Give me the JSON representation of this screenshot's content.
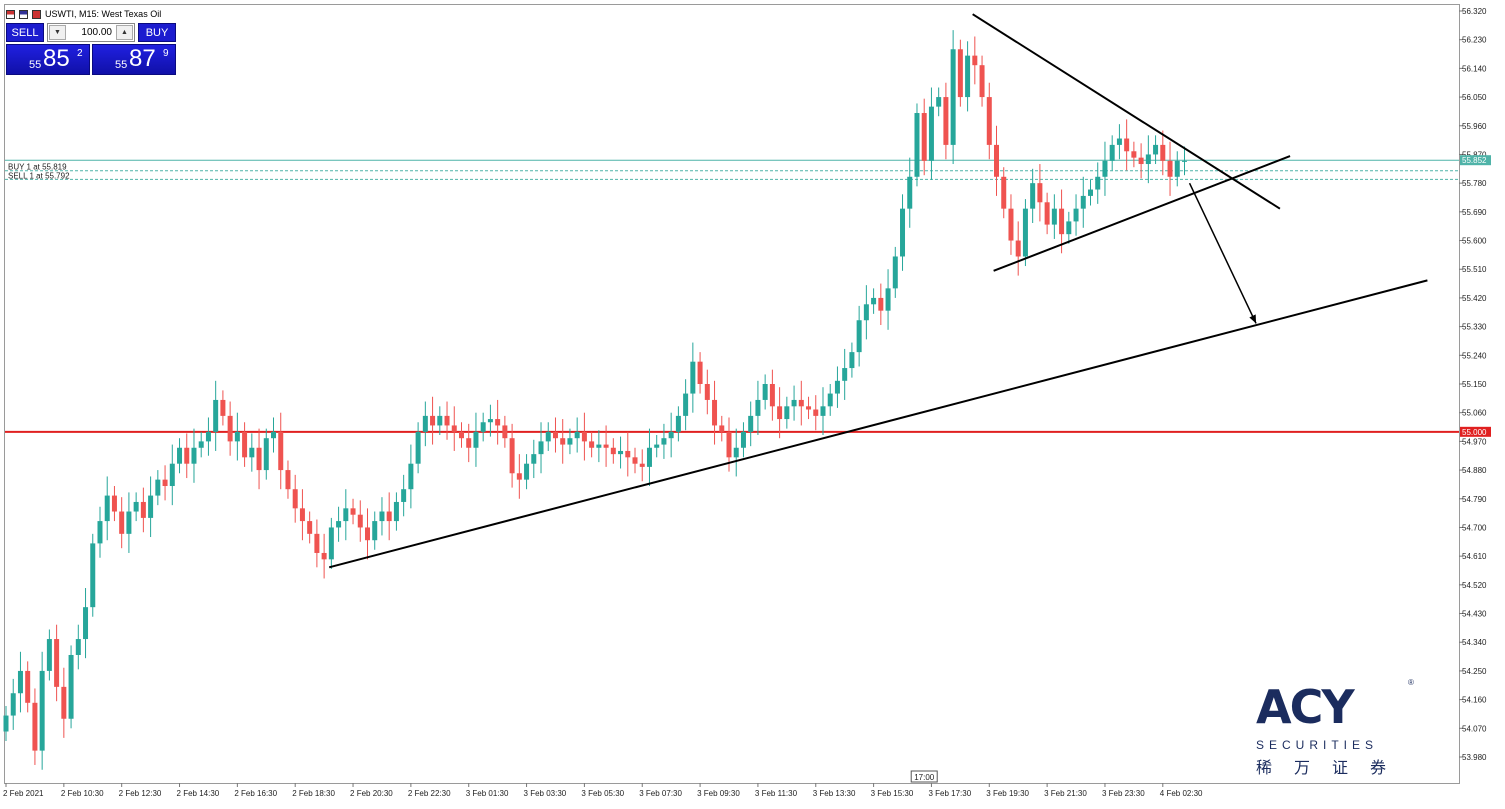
{
  "window": {
    "title": "USWTI, M15:  West Texas Oil"
  },
  "trade_panel": {
    "sell_label": "SELL",
    "buy_label": "BUY",
    "lot_value": "100.00",
    "sell_price": {
      "prefix": "55",
      "big": "85",
      "sup": "2"
    },
    "buy_price": {
      "prefix": "55",
      "big": "87",
      "sup": "9"
    }
  },
  "logo": {
    "letters": "ACY",
    "reg": "®",
    "subtitle": "SECURITIES",
    "chinese": "稀万证券"
  },
  "colors": {
    "bull": "#26a69a",
    "bear": "#ef5350",
    "level": "#e02020",
    "bid_line": "#4fb3a8",
    "trendline": "#000000"
  },
  "chart_data": {
    "type": "candlestick",
    "symbol": "USWTI",
    "timeframe": "M15",
    "ylim": [
      53.89,
      56.33
    ],
    "y_ticks": [
      "56.320",
      "56.230",
      "56.140",
      "56.050",
      "55.960",
      "55.870",
      "55.780",
      "55.690",
      "55.600",
      "55.510",
      "55.420",
      "55.330",
      "55.240",
      "55.150",
      "55.060",
      "54.970",
      "54.880",
      "54.790",
      "54.700",
      "54.610",
      "54.520",
      "54.430",
      "54.340",
      "54.250",
      "54.160",
      "54.070",
      "53.980"
    ],
    "x_tick_labels": [
      "2 Feb 2021",
      "2 Feb 10:30",
      "2 Feb 12:30",
      "2 Feb 14:30",
      "2 Feb 16:30",
      "2 Feb 18:30",
      "2 Feb 20:30",
      "2 Feb 22:30",
      "3 Feb 01:30",
      "3 Feb 03:30",
      "3 Feb 05:30",
      "3 Feb 07:30",
      "3 Feb 09:30",
      "3 Feb 11:30",
      "3 Feb 13:30",
      "3 Feb 15:30",
      "3 Feb 17:30",
      "3 Feb 19:30",
      "3 Feb 21:30",
      "3 Feb 23:30",
      "4 Feb 02:30"
    ],
    "x_tick_candle_index": [
      0,
      8,
      16,
      24,
      32,
      40,
      48,
      56,
      64,
      72,
      80,
      88,
      96,
      104,
      112,
      120,
      128,
      136,
      144,
      152,
      160
    ],
    "current_price": 55.852,
    "current_price_label": "55.852",
    "level_price": 55.0,
    "level_label": "55.000",
    "orders": [
      {
        "label": "BUY 1 at 55.819",
        "price": 55.819
      },
      {
        "label": "SELL 1 at 55.792",
        "price": 55.792
      }
    ],
    "time_marker_label": "17:00",
    "time_marker_index": 127,
    "trendlines": [
      {
        "from": [
          44.7,
          54.575
        ],
        "to": [
          196.6,
          55.475
        ]
      },
      {
        "from": [
          133.7,
          56.31
        ],
        "to": [
          176.2,
          55.7
        ]
      },
      {
        "from": [
          136.6,
          55.505
        ],
        "to": [
          177.6,
          55.865
        ]
      }
    ],
    "arrow": {
      "from": [
        163.7,
        55.78
      ],
      "to": [
        172.9,
        55.34
      ]
    },
    "candle_close": [
      54.11,
      54.18,
      54.25,
      54.15,
      54.0,
      54.25,
      54.35,
      54.2,
      54.1,
      54.3,
      54.35,
      54.45,
      54.65,
      54.72,
      54.8,
      54.75,
      54.68,
      54.75,
      54.78,
      54.73,
      54.8,
      54.85,
      54.83,
      54.9,
      54.95,
      54.9,
      54.95,
      54.97,
      55.0,
      55.1,
      55.05,
      54.97,
      55.0,
      54.92,
      54.95,
      54.88,
      54.98,
      55.0,
      54.88,
      54.82,
      54.76,
      54.72,
      54.68,
      54.62,
      54.6,
      54.7,
      54.72,
      54.76,
      54.74,
      54.7,
      54.66,
      54.72,
      54.75,
      54.72,
      54.78,
      54.82,
      54.9,
      55.0,
      55.05,
      55.02,
      55.05,
      55.02,
      55.0,
      54.98,
      54.95,
      55.0,
      55.03,
      55.04,
      55.02,
      54.98,
      54.87,
      54.85,
      54.9,
      54.93,
      54.97,
      55.0,
      54.98,
      54.96,
      54.98,
      55.0,
      54.97,
      54.95,
      54.96,
      54.95,
      54.93,
      54.94,
      54.92,
      54.9,
      54.89,
      54.95,
      54.96,
      54.98,
      55.0,
      55.05,
      55.12,
      55.22,
      55.15,
      55.1,
      55.02,
      55.0,
      54.92,
      54.95,
      55.0,
      55.05,
      55.1,
      55.15,
      55.08,
      55.04,
      55.08,
      55.1,
      55.08,
      55.07,
      55.05,
      55.08,
      55.12,
      55.16,
      55.2,
      55.25,
      55.35,
      55.4,
      55.42,
      55.38,
      55.45,
      55.55,
      55.7,
      55.8,
      56.0,
      55.85,
      56.02,
      56.05,
      55.9,
      56.2,
      56.05,
      56.18,
      56.15,
      56.05,
      55.9,
      55.8,
      55.7,
      55.6,
      55.55,
      55.7,
      55.78,
      55.72,
      55.65,
      55.7,
      55.62,
      55.66,
      55.7,
      55.74,
      55.76,
      55.8,
      55.85,
      55.9,
      55.92,
      55.88,
      55.86,
      55.84,
      55.87,
      55.9,
      55.85,
      55.8,
      55.85,
      55.85
    ]
  }
}
